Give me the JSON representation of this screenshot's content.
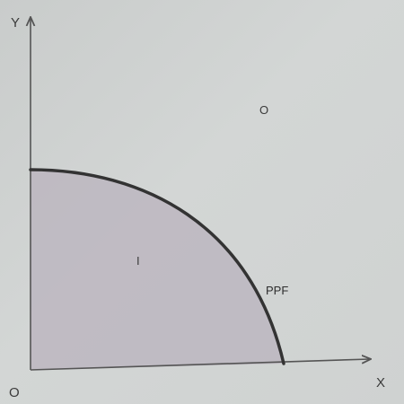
{
  "diagram": {
    "y_axis_label": "Y",
    "x_axis_label": "X",
    "origin_label": "O",
    "inside_region_label": "I",
    "outside_region_label": "O",
    "curve_label": "PPF",
    "colors": {
      "background": "#cdd0cf",
      "shaded_region": "#bcb6bf",
      "curve": "#333333",
      "axis": "#555555"
    }
  }
}
